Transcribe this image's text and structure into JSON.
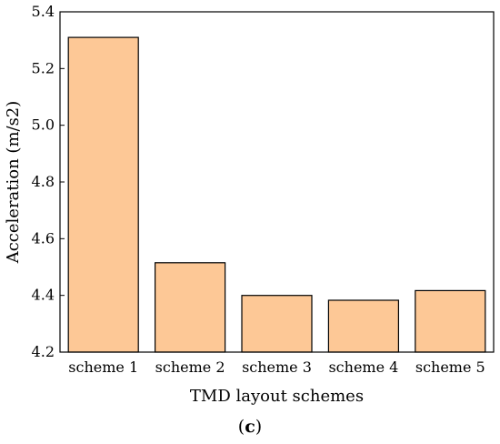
{
  "chart_data": {
    "type": "bar",
    "categories": [
      "scheme 1",
      "scheme 2",
      "scheme 3",
      "scheme 4",
      "scheme 5"
    ],
    "values": [
      5.31,
      4.515,
      4.4,
      4.383,
      4.417
    ],
    "xlabel": "TMD layout schemes",
    "ylabel": "Acceleration (m/s2)",
    "ylim": [
      4.2,
      5.4
    ],
    "yticks": [
      "4.2",
      "4.4",
      "4.6",
      "4.8",
      "5.0",
      "5.2",
      "5.4"
    ],
    "grid": false,
    "bar_color": "#fdc896",
    "bar_edge_color": "#000000"
  },
  "caption": {
    "open": "(",
    "letter": "c",
    "close": ")"
  }
}
